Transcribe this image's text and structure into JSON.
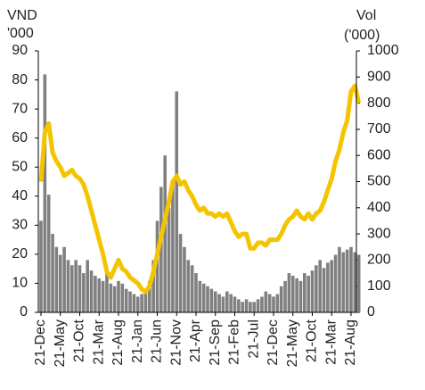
{
  "chart_data": {
    "type": "bar-line",
    "ylabel": [
      "VND",
      "'000"
    ],
    "y2label": [
      "Vol",
      "('000)"
    ],
    "categories": [
      "21-Dec",
      null,
      null,
      null,
      null,
      "21-May",
      null,
      null,
      null,
      null,
      "21-Oct",
      null,
      null,
      null,
      null,
      "21-Mar",
      null,
      null,
      null,
      null,
      "21-Aug",
      null,
      null,
      null,
      null,
      "21-Jan",
      null,
      null,
      null,
      null,
      "21-Jun",
      null,
      null,
      null,
      null,
      "21-Nov",
      null,
      null,
      null,
      null,
      "21-Apr",
      null,
      null,
      null,
      null,
      "21-Sep",
      null,
      null,
      null,
      null,
      "21-Feb",
      null,
      null,
      null,
      null,
      "21-Jul",
      null,
      null,
      null,
      null,
      "21-Dec",
      null,
      null,
      null,
      null,
      "21-May",
      null,
      null,
      null,
      null,
      "21-Oct",
      null,
      null,
      null,
      null,
      "21-Mar",
      null,
      null,
      null,
      null,
      "21-Aug",
      null,
      null
    ],
    "series": [
      {
        "kind": "bar",
        "axis": "y2",
        "color": "#808080",
        "values": [
          350,
          910,
          450,
          300,
          250,
          220,
          250,
          200,
          180,
          200,
          180,
          150,
          200,
          160,
          140,
          130,
          120,
          150,
          110,
          100,
          120,
          110,
          90,
          80,
          70,
          60,
          70,
          80,
          120,
          200,
          350,
          480,
          600,
          400,
          500,
          845,
          300,
          250,
          200,
          180,
          150,
          120,
          110,
          100,
          90,
          80,
          70,
          60,
          80,
          70,
          60,
          50,
          40,
          50,
          40,
          40,
          50,
          60,
          80,
          70,
          60,
          70,
          100,
          120,
          150,
          140,
          130,
          120,
          150,
          140,
          160,
          180,
          200,
          170,
          190,
          200,
          220,
          250,
          230,
          240,
          250,
          230,
          220
        ]
      },
      {
        "kind": "line",
        "axis": "y",
        "color": "#f5c400",
        "values": [
          45,
          62,
          65,
          55,
          52,
          50,
          47,
          48,
          49,
          47,
          46,
          44,
          40,
          35,
          30,
          25,
          20,
          14,
          12,
          15,
          18,
          15,
          14,
          12,
          11,
          10,
          8,
          7,
          9,
          14,
          20,
          26,
          32,
          38,
          45,
          47,
          44,
          45,
          42,
          40,
          37,
          35,
          36,
          34,
          34,
          33,
          34,
          33,
          34,
          31,
          28,
          26,
          27,
          27,
          22,
          22,
          24,
          24,
          23,
          25,
          25,
          25,
          27,
          30,
          32,
          33,
          35,
          33,
          32,
          34,
          32,
          34,
          35,
          38,
          42,
          46,
          52,
          56,
          62,
          66,
          76,
          78,
          72
        ]
      }
    ],
    "ylim": [
      0,
      90
    ],
    "yticks": [
      0,
      10,
      20,
      30,
      40,
      50,
      60,
      70,
      80,
      90
    ],
    "y2lim": [
      0,
      1000
    ],
    "y2ticks": [
      0,
      100,
      200,
      300,
      400,
      500,
      600,
      700,
      800,
      900,
      1000
    ]
  }
}
